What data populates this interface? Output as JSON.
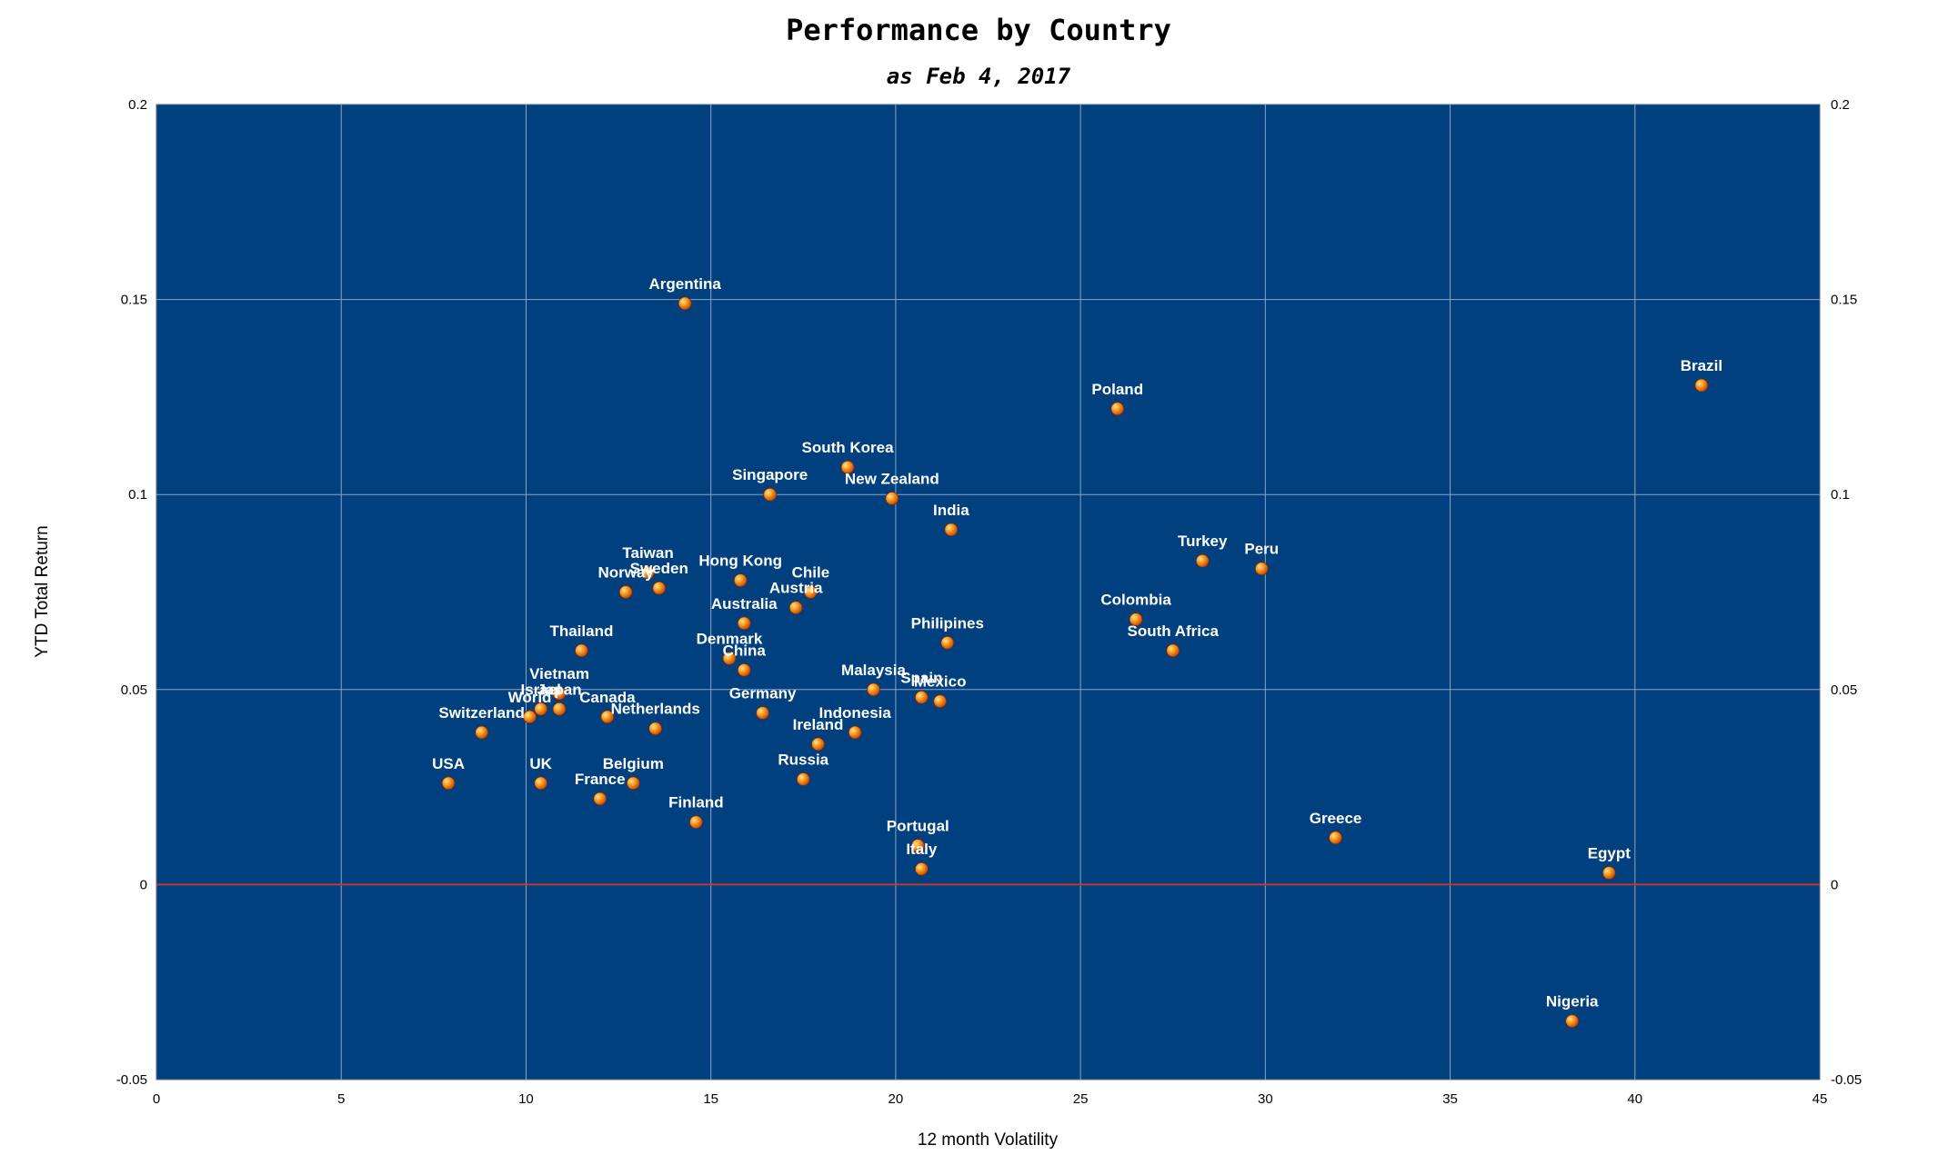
{
  "chart_data": {
    "type": "scatter",
    "title": "Performance by Country",
    "subtitle": "as Feb 4, 2017",
    "xlabel": "12 month Volatility",
    "ylabel": "YTD Total Return",
    "xlim": [
      0,
      45
    ],
    "ylim": [
      -0.05,
      0.2
    ],
    "x_ticks": [
      "0",
      "5",
      "10",
      "15",
      "20",
      "25",
      "30",
      "35",
      "40",
      "45"
    ],
    "y_ticks": [
      "-0.05",
      "0",
      "0.05",
      "0.1",
      "0.15",
      "0.2"
    ],
    "grid": true,
    "background_color": "#00407f",
    "grid_color": "#8fa3c2",
    "zero_line_color": "#c0392b",
    "marker_color": "#f08a1c",
    "points": [
      {
        "label": "Argentina",
        "x": 14.3,
        "y": 0.149
      },
      {
        "label": "Brazil",
        "x": 41.8,
        "y": 0.128
      },
      {
        "label": "Poland",
        "x": 26.0,
        "y": 0.122
      },
      {
        "label": "South Korea",
        "x": 18.7,
        "y": 0.107
      },
      {
        "label": "Singapore",
        "x": 16.6,
        "y": 0.1
      },
      {
        "label": "New Zealand",
        "x": 19.9,
        "y": 0.099
      },
      {
        "label": "India",
        "x": 21.5,
        "y": 0.091
      },
      {
        "label": "Turkey",
        "x": 28.3,
        "y": 0.083
      },
      {
        "label": "Peru",
        "x": 29.9,
        "y": 0.081
      },
      {
        "label": "Taiwan",
        "x": 13.3,
        "y": 0.08
      },
      {
        "label": "Hong Kong",
        "x": 15.8,
        "y": 0.078
      },
      {
        "label": "Sweden",
        "x": 13.6,
        "y": 0.076
      },
      {
        "label": "Chile",
        "x": 17.7,
        "y": 0.075
      },
      {
        "label": "Norway",
        "x": 12.7,
        "y": 0.075
      },
      {
        "label": "Austria",
        "x": 17.3,
        "y": 0.071
      },
      {
        "label": "Colombia",
        "x": 26.5,
        "y": 0.068
      },
      {
        "label": "Australia",
        "x": 15.9,
        "y": 0.067
      },
      {
        "label": "Philipines",
        "x": 21.4,
        "y": 0.062
      },
      {
        "label": "South Africa",
        "x": 27.5,
        "y": 0.06
      },
      {
        "label": "Thailand",
        "x": 11.5,
        "y": 0.06
      },
      {
        "label": "Denmark",
        "x": 15.5,
        "y": 0.058
      },
      {
        "label": "China",
        "x": 15.9,
        "y": 0.055
      },
      {
        "label": "Malaysia",
        "x": 19.4,
        "y": 0.05
      },
      {
        "label": "Vietnam",
        "x": 10.9,
        "y": 0.049
      },
      {
        "label": "Spain",
        "x": 20.7,
        "y": 0.048
      },
      {
        "label": "Mexico",
        "x": 21.2,
        "y": 0.047
      },
      {
        "label": "Japan",
        "x": 10.9,
        "y": 0.045
      },
      {
        "label": "Israel",
        "x": 10.4,
        "y": 0.045
      },
      {
        "label": "Germany",
        "x": 16.4,
        "y": 0.044
      },
      {
        "label": "Canada",
        "x": 12.2,
        "y": 0.043
      },
      {
        "label": "World",
        "x": 10.1,
        "y": 0.043
      },
      {
        "label": "Netherlands",
        "x": 13.5,
        "y": 0.04
      },
      {
        "label": "Indonesia",
        "x": 18.9,
        "y": 0.039
      },
      {
        "label": "Switzerland",
        "x": 8.8,
        "y": 0.039
      },
      {
        "label": "Ireland",
        "x": 17.9,
        "y": 0.036
      },
      {
        "label": "Russia",
        "x": 17.5,
        "y": 0.027
      },
      {
        "label": "USA",
        "x": 7.9,
        "y": 0.026
      },
      {
        "label": "UK",
        "x": 10.4,
        "y": 0.026
      },
      {
        "label": "Belgium",
        "x": 12.9,
        "y": 0.026
      },
      {
        "label": "France",
        "x": 12.0,
        "y": 0.022
      },
      {
        "label": "Finland",
        "x": 14.6,
        "y": 0.016
      },
      {
        "label": "Greece",
        "x": 31.9,
        "y": 0.012
      },
      {
        "label": "Portugal",
        "x": 20.6,
        "y": 0.01
      },
      {
        "label": "Italy",
        "x": 20.7,
        "y": 0.004
      },
      {
        "label": "Egypt",
        "x": 39.3,
        "y": 0.003
      },
      {
        "label": "Nigeria",
        "x": 38.3,
        "y": -0.035
      }
    ]
  }
}
